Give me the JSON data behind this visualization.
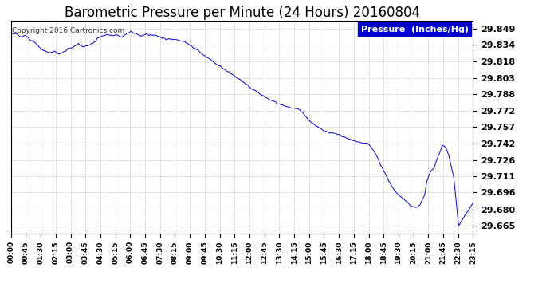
{
  "title": "Barometric Pressure per Minute (24 Hours) 20160804",
  "copyright": "Copyright 2016 Cartronics.com",
  "legend_label": "Pressure  (Inches/Hg)",
  "legend_bg": "#0000cc",
  "legend_text_color": "#ffffff",
  "line_color": "#0000cc",
  "bg_color": "#ffffff",
  "grid_color": "#bbbbbb",
  "title_fontsize": 12,
  "ylabel_values": [
    29.849,
    29.834,
    29.818,
    29.803,
    29.788,
    29.772,
    29.757,
    29.742,
    29.726,
    29.711,
    29.696,
    29.68,
    29.665
  ],
  "ylim": [
    29.658,
    29.856
  ],
  "xtick_labels": [
    "00:00",
    "00:45",
    "01:30",
    "02:15",
    "03:00",
    "03:45",
    "04:30",
    "05:15",
    "06:00",
    "06:45",
    "07:30",
    "08:15",
    "09:00",
    "09:45",
    "10:30",
    "11:15",
    "12:00",
    "12:45",
    "13:30",
    "14:15",
    "15:00",
    "15:45",
    "16:30",
    "17:15",
    "18:00",
    "18:45",
    "19:30",
    "20:15",
    "21:00",
    "21:45",
    "22:30",
    "23:15"
  ],
  "keypoints_t": [
    0,
    0.25,
    0.5,
    0.75,
    1.0,
    1.25,
    1.5,
    1.75,
    2.0,
    2.25,
    2.5,
    2.75,
    3.0,
    3.25,
    3.5,
    3.75,
    4.0,
    4.25,
    4.5,
    4.75,
    5.0,
    5.25,
    5.5,
    5.75,
    6.0,
    6.25,
    6.5,
    6.75,
    7.0,
    7.25,
    7.5,
    7.75,
    8.0,
    8.25,
    8.5,
    8.75,
    9.0,
    9.25,
    9.5,
    9.75,
    10.0,
    10.5,
    11.0,
    11.5,
    12.0,
    12.5,
    13.0,
    13.5,
    14.0,
    14.5,
    15.0,
    15.5,
    16.0,
    16.25,
    16.5,
    16.75,
    17.0,
    17.25,
    17.5,
    17.75,
    18.0,
    18.25,
    18.5,
    18.6,
    18.75,
    19.0,
    19.1,
    19.25,
    19.5,
    19.75,
    20.0,
    20.25,
    20.5,
    20.75,
    21.0,
    21.25,
    21.5,
    21.6,
    21.75,
    22.0,
    22.1,
    22.25,
    22.4,
    22.5,
    22.6,
    22.75,
    23.0,
    23.25,
    24.0
  ],
  "keypoints_v": [
    29.843,
    29.845,
    29.841,
    29.843,
    29.838,
    29.836,
    29.831,
    29.828,
    29.826,
    29.828,
    29.825,
    29.827,
    29.83,
    29.832,
    29.834,
    29.832,
    29.833,
    29.835,
    29.84,
    29.842,
    29.843,
    29.842,
    29.843,
    29.841,
    29.844,
    29.846,
    29.844,
    29.842,
    29.843,
    29.843,
    29.843,
    29.841,
    29.839,
    29.839,
    29.839,
    29.838,
    29.837,
    29.834,
    29.831,
    29.828,
    29.824,
    29.818,
    29.812,
    29.806,
    29.8,
    29.793,
    29.787,
    29.782,
    29.778,
    29.775,
    29.773,
    29.763,
    29.756,
    29.754,
    29.752,
    29.751,
    29.75,
    29.748,
    29.746,
    29.745,
    29.743,
    29.742,
    29.742,
    29.74,
    29.737,
    29.73,
    29.726,
    29.72,
    29.711,
    29.703,
    29.696,
    29.692,
    29.688,
    29.684,
    29.682,
    29.684,
    29.695,
    29.706,
    29.714,
    29.72,
    29.726,
    29.732,
    29.74,
    29.74,
    29.738,
    29.73,
    29.71,
    29.665,
    29.686
  ],
  "num_points": 1440
}
